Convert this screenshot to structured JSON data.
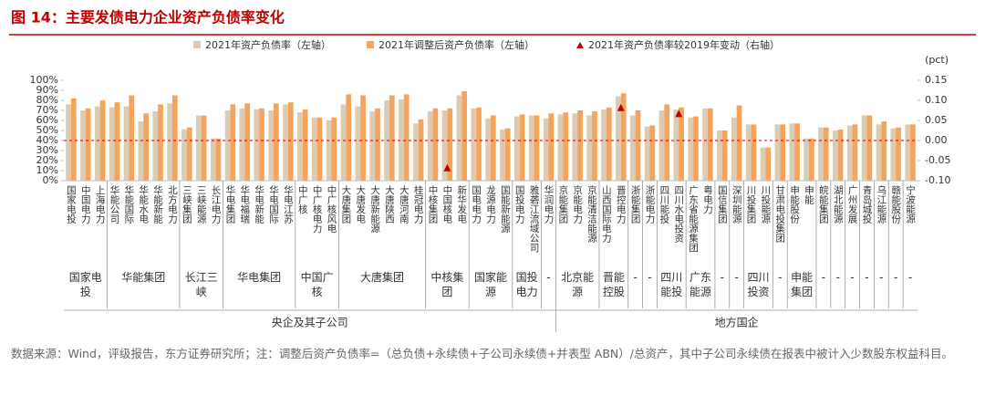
{
  "chart_data": {
    "type": "bar",
    "title": "图 14：主要发债电力企业资产负债率变化",
    "y2_axis_label": "(pct)",
    "source": "数据来源：Wind，评级报告，东方证券研究所；注：调整后资产负债率=（总负债+永续债+子公司永续债+并表型 ABN）/总资产，其中子公司永续债在报表中被计入少数股东权益科目。",
    "sections": [
      {
        "label": "央企及其子公司",
        "groups": [
          {
            "label": "国家电投",
            "categories": [
              "国家电投",
              "中国电力",
              "上海电力"
            ]
          },
          {
            "label": "华能集团",
            "categories": [
              "华能公司",
              "华能国际",
              "华能水电",
              "华能新能",
              "北方电力"
            ]
          },
          {
            "label": "长江三峡",
            "categories": [
              "三峡集团",
              "三峡能源",
              "长江电力"
            ]
          },
          {
            "label": "华电集团",
            "categories": [
              "华电集团",
              "华电福瑞",
              "华电新能",
              "华电国际",
              "华电江苏"
            ]
          },
          {
            "label": "中国广核",
            "categories": [
              "中广核",
              "中广核电力",
              "中广核风电"
            ]
          },
          {
            "label": "大唐集团",
            "categories": [
              "大唐集团",
              "大唐发电",
              "大唐新能源",
              "大唐陕西",
              "大唐河南",
              "桂冠电力"
            ]
          },
          {
            "label": "中核集团",
            "categories": [
              "中核集团",
              "中国核电",
              "新华发电"
            ]
          },
          {
            "label": "国家能源",
            "categories": [
              "国电电力",
              "龙源电力",
              "国能新能源"
            ]
          },
          {
            "label": "国投电力",
            "categories": [
              "国投电力",
              "雅砻江流域公司"
            ]
          },
          {
            "label": "-",
            "categories": [
              "华润电力"
            ]
          }
        ]
      },
      {
        "label": "地方国企",
        "groups": [
          {
            "label": "北京能源",
            "categories": [
              "京能集团",
              "京能电力",
              "京能清洁能源"
            ]
          },
          {
            "label": "晋能控股",
            "categories": [
              "山西国际电力",
              "晋控电力"
            ]
          },
          {
            "label": "-",
            "categories": [
              "浙能集团"
            ]
          },
          {
            "label": "-",
            "categories": [
              "浙能电力"
            ]
          },
          {
            "label": "四川能投",
            "categories": [
              "四川能投",
              "四川水电投资"
            ]
          },
          {
            "label": "广东能源",
            "categories": [
              "广东省能源集团",
              "粤电力"
            ]
          },
          {
            "label": "-",
            "categories": [
              "国信集团"
            ]
          },
          {
            "label": "-",
            "categories": [
              "深圳能源"
            ]
          },
          {
            "label": "四川投资",
            "categories": [
              "川投集团",
              "川投能源"
            ]
          },
          {
            "label": "-",
            "categories": [
              "甘肃电投集团"
            ]
          },
          {
            "label": "申能集团",
            "categories": [
              "申能股份",
              "申能"
            ]
          },
          {
            "label": "-",
            "categories": [
              "皖能集团"
            ]
          },
          {
            "label": "-",
            "categories": [
              "湖北能源"
            ]
          },
          {
            "label": "-",
            "categories": [
              "广州发展"
            ]
          },
          {
            "label": "-",
            "categories": [
              "青岛城投"
            ]
          },
          {
            "label": "-",
            "categories": [
              "乌江能源"
            ]
          },
          {
            "label": "-",
            "categories": [
              "赣能股份"
            ]
          },
          {
            "label": "-",
            "categories": [
              "宁波能源"
            ]
          }
        ]
      }
    ],
    "series": [
      {
        "name": "2021年资产负债率（左轴）",
        "color": "#dccbb4",
        "mark": "bar",
        "values": [
          76,
          70,
          74,
          73,
          74,
          59,
          69,
          77,
          51,
          65,
          42,
          70,
          72,
          71,
          70,
          76,
          68,
          63,
          60,
          76,
          74,
          69,
          80,
          81,
          57,
          69,
          70,
          85,
          72,
          62,
          51,
          64,
          65,
          62,
          66,
          67,
          65,
          71,
          84,
          65,
          54,
          70,
          71,
          63,
          72,
          50,
          63,
          56,
          33,
          56,
          57,
          42,
          53,
          50,
          55,
          65,
          56,
          52,
          56
        ]
      },
      {
        "name": "2021年调整后资产负债率（左轴）",
        "color": "#f5a45d",
        "mark": "bar",
        "values": [
          82,
          72,
          80,
          78,
          85,
          67,
          76,
          85,
          53,
          65,
          42,
          76,
          77,
          72,
          77,
          78,
          71,
          63,
          63,
          86,
          85,
          72,
          85,
          86,
          61,
          72,
          72,
          89,
          73,
          65,
          52,
          66,
          65,
          67,
          68,
          70,
          69,
          73,
          87,
          70,
          55,
          76,
          73,
          64,
          72,
          50,
          75,
          56,
          33,
          56,
          57,
          42,
          53,
          51,
          56,
          65,
          59,
          53,
          56
        ]
      },
      {
        "name": "2021年资产负债率较2019年变动（右轴）",
        "color": "#c00000",
        "mark": "triangle",
        "axis": "y2",
        "values": [
          null,
          null,
          null,
          null,
          null,
          null,
          null,
          null,
          null,
          null,
          null,
          null,
          null,
          null,
          null,
          null,
          null,
          null,
          null,
          null,
          null,
          null,
          null,
          null,
          null,
          null,
          -0.07,
          null,
          null,
          null,
          null,
          null,
          null,
          null,
          null,
          null,
          null,
          null,
          0.08,
          null,
          null,
          null,
          0.065,
          null,
          null,
          null,
          null,
          null,
          null,
          null,
          null,
          null,
          null,
          null,
          null,
          null,
          null,
          null,
          null
        ]
      }
    ],
    "ylim": [
      0,
      100
    ],
    "yticks": [
      {
        "value": 0,
        "label": "0%"
      },
      {
        "value": 10,
        "label": "10%"
      },
      {
        "value": 20,
        "label": "20%"
      },
      {
        "value": 30,
        "label": "30%"
      },
      {
        "value": 40,
        "label": "40%"
      },
      {
        "value": 50,
        "label": "50%"
      },
      {
        "value": 60,
        "label": "60%"
      },
      {
        "value": 70,
        "label": "70%"
      },
      {
        "value": 80,
        "label": "80%"
      },
      {
        "value": 90,
        "label": "90%"
      },
      {
        "value": 100,
        "label": "100%"
      }
    ],
    "y2lim": [
      -0.1,
      0.15
    ],
    "y2ticks": [
      {
        "value": -0.1,
        "label": "-0.10"
      },
      {
        "value": -0.05,
        "label": "-0.05"
      },
      {
        "value": 0,
        "label": "0.00"
      },
      {
        "value": 0.05,
        "label": "0.05"
      },
      {
        "value": 0.1,
        "label": "0.10"
      },
      {
        "value": 0.15,
        "label": "0.15"
      }
    ],
    "reference_line": {
      "axis": "y2",
      "value": 0,
      "color": "#c00000",
      "style": "dashed"
    },
    "grid": false
  }
}
